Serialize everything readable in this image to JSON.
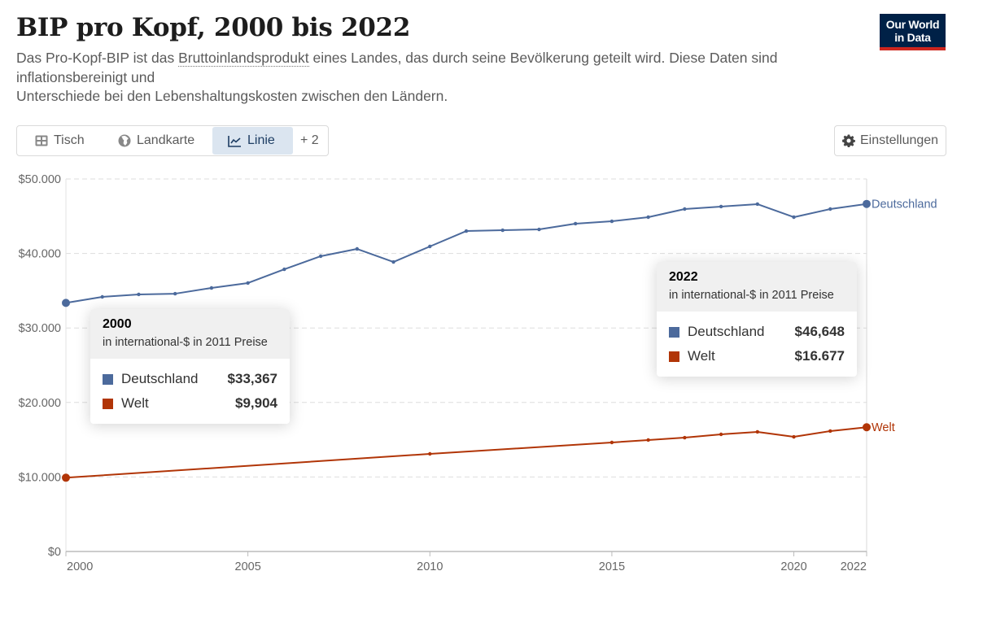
{
  "header": {
    "title": "BIP pro Kopf, 2000 bis 2022",
    "subtitle_pre": "Das Pro-Kopf-BIP ist das ",
    "subtitle_link": "Bruttoinlandsprodukt",
    "subtitle_post": " eines Landes, das durch seine Bevölkerung geteilt wird. Diese Daten sind inflationsbereinigt und",
    "subtitle_line2": "Unterschiede bei den Lebenshaltungskosten zwischen den Ländern.",
    "logo_line1": "Our World",
    "logo_line2": "in Data"
  },
  "tabs": [
    {
      "label": "Tisch",
      "icon": "table-icon",
      "active": false
    },
    {
      "label": "Landkarte",
      "icon": "globe-icon",
      "active": false
    },
    {
      "label": "Linie",
      "icon": "line-chart-icon",
      "active": true
    },
    {
      "label": "+ 2",
      "icon": "",
      "active": false
    }
  ],
  "settings": {
    "label": "Einstellungen",
    "icon": "gear-icon"
  },
  "colors": {
    "deutschland": "#4c6a9c",
    "welt": "#b13507",
    "grid": "#dddddd",
    "axis": "#bbbbbb"
  },
  "tooltips": [
    {
      "year": "2000",
      "unit": "in international-$ in 2011 Preise",
      "rows": [
        {
          "name": "Deutschland",
          "value": "$33,367"
        },
        {
          "name": "Welt",
          "value": "$9,904"
        }
      ]
    },
    {
      "year": "2022",
      "unit": "in international-$ in 2011 Preise",
      "rows": [
        {
          "name": "Deutschland",
          "value": "$46,648"
        },
        {
          "name": "Welt",
          "value": "$16.677"
        }
      ]
    }
  ],
  "chart_data": {
    "type": "line",
    "title": "BIP pro Kopf, 2000 bis 2022",
    "xlabel": "",
    "ylabel": "",
    "xlim": [
      2000,
      2022
    ],
    "ylim": [
      0,
      50000
    ],
    "grid": true,
    "legend": "inline-right",
    "x_ticks": [
      {
        "value": 2000,
        "label": "2000"
      },
      {
        "value": 2005,
        "label": "2005"
      },
      {
        "value": 2010,
        "label": "2010"
      },
      {
        "value": 2015,
        "label": "2015"
      },
      {
        "value": 2020,
        "label": "2020"
      },
      {
        "value": 2022,
        "label": "2022"
      }
    ],
    "y_ticks": [
      {
        "value": 0,
        "label": "$0"
      },
      {
        "value": 10000,
        "label": "$10.000"
      },
      {
        "value": 20000,
        "label": "$20.000"
      },
      {
        "value": 30000,
        "label": "$30.000"
      },
      {
        "value": 40000,
        "label": "$40.000"
      },
      {
        "value": 50000,
        "label": "$50.000"
      }
    ],
    "series": [
      {
        "name": "Deutschland",
        "color": "#4c6a9c",
        "x": [
          2000,
          2001,
          2002,
          2003,
          2004,
          2005,
          2006,
          2007,
          2008,
          2009,
          2010,
          2011,
          2012,
          2013,
          2014,
          2015,
          2016,
          2017,
          2018,
          2019,
          2020,
          2021,
          2022
        ],
        "values": [
          33367,
          34170,
          34500,
          34600,
          35370,
          36030,
          37880,
          39630,
          40610,
          38860,
          40940,
          43010,
          43120,
          43230,
          44000,
          44320,
          44870,
          45960,
          46290,
          46620,
          44870,
          45960,
          46648
        ]
      },
      {
        "name": "Welt",
        "color": "#b13507",
        "x": [
          2000,
          2010,
          2015,
          2016,
          2017,
          2018,
          2019,
          2020,
          2021,
          2022
        ],
        "values": [
          9904,
          13100,
          14630,
          14960,
          15280,
          15720,
          16050,
          15390,
          16160,
          16677
        ]
      }
    ]
  }
}
